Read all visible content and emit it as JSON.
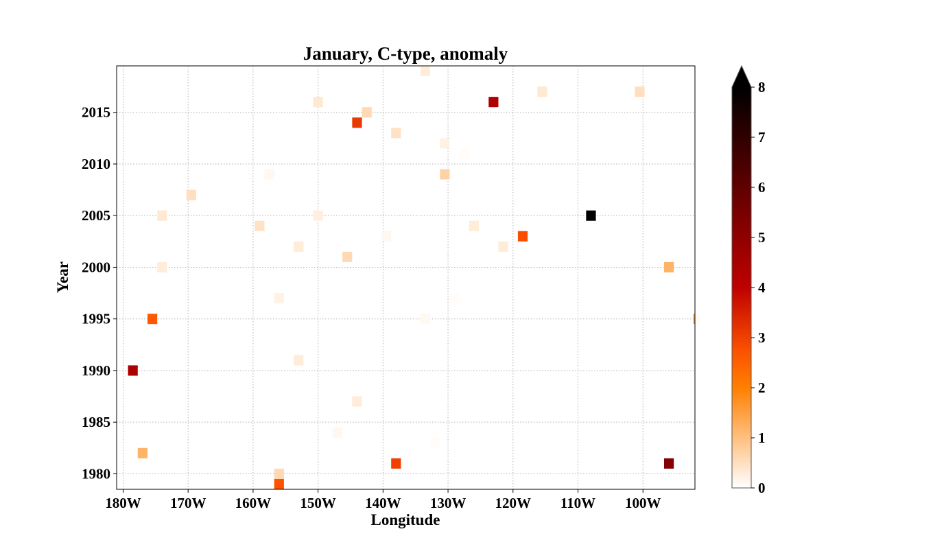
{
  "chart_data": {
    "type": "heatmap",
    "title": "January, C-type, anomaly",
    "xlabel": "Longitude",
    "ylabel": "Year",
    "xlim": [
      -181,
      -92
    ],
    "ylim": [
      1978.5,
      2019.5
    ],
    "x_ticks": [
      {
        "value": -180,
        "label": "180W"
      },
      {
        "value": -170,
        "label": "170W"
      },
      {
        "value": -160,
        "label": "160W"
      },
      {
        "value": -150,
        "label": "150W"
      },
      {
        "value": -140,
        "label": "140W"
      },
      {
        "value": -130,
        "label": "130W"
      },
      {
        "value": -120,
        "label": "120W"
      },
      {
        "value": -110,
        "label": "110W"
      },
      {
        "value": -100,
        "label": "100W"
      }
    ],
    "y_ticks": [
      {
        "value": 1980,
        "label": "1980"
      },
      {
        "value": 1985,
        "label": "1985"
      },
      {
        "value": 1990,
        "label": "1990"
      },
      {
        "value": 1995,
        "label": "1995"
      },
      {
        "value": 2000,
        "label": "2000"
      },
      {
        "value": 2005,
        "label": "2005"
      },
      {
        "value": 2010,
        "label": "2010"
      },
      {
        "value": 2015,
        "label": "2015"
      }
    ],
    "grid": true,
    "colormap": "gist_heat_r",
    "colorbar": {
      "min": 0,
      "max": 8,
      "extend": "max",
      "ticks": [
        {
          "value": 0,
          "label": "0"
        },
        {
          "value": 1,
          "label": "1"
        },
        {
          "value": 2,
          "label": "2"
        },
        {
          "value": 3,
          "label": "3"
        },
        {
          "value": 4,
          "label": "4"
        },
        {
          "value": 5,
          "label": "5"
        },
        {
          "value": 6,
          "label": "6"
        },
        {
          "value": 7,
          "label": "7"
        },
        {
          "value": 8,
          "label": "8"
        }
      ]
    },
    "cell_size": {
      "lon": 1.5,
      "year": 1
    },
    "points": [
      {
        "lon": -133.5,
        "year": 2019,
        "value": 0.3
      },
      {
        "lon": -115.5,
        "year": 2017,
        "value": 0.35
      },
      {
        "lon": -100.5,
        "year": 2017,
        "value": 0.5
      },
      {
        "lon": -123,
        "year": 2016,
        "value": 4.3
      },
      {
        "lon": -150,
        "year": 2016,
        "value": 0.35
      },
      {
        "lon": -142.5,
        "year": 2015,
        "value": 0.6
      },
      {
        "lon": -144,
        "year": 2014,
        "value": 3.1
      },
      {
        "lon": -138,
        "year": 2013,
        "value": 0.45
      },
      {
        "lon": -130.5,
        "year": 2012,
        "value": 0.2
      },
      {
        "lon": -127.5,
        "year": 2011,
        "value": 0.05
      },
      {
        "lon": -130.5,
        "year": 2009,
        "value": 0.7
      },
      {
        "lon": -157.5,
        "year": 2009,
        "value": 0.12
      },
      {
        "lon": -169.5,
        "year": 2007,
        "value": 0.5
      },
      {
        "lon": -174,
        "year": 2005,
        "value": 0.35
      },
      {
        "lon": -150,
        "year": 2005,
        "value": 0.25
      },
      {
        "lon": -108,
        "year": 2005,
        "value": 8.0
      },
      {
        "lon": -159,
        "year": 2004,
        "value": 0.45
      },
      {
        "lon": -126,
        "year": 2004,
        "value": 0.3
      },
      {
        "lon": -118.5,
        "year": 2003,
        "value": 2.8
      },
      {
        "lon": -139.5,
        "year": 2003,
        "value": 0.12
      },
      {
        "lon": -153,
        "year": 2002,
        "value": 0.3
      },
      {
        "lon": -121.5,
        "year": 2002,
        "value": 0.3
      },
      {
        "lon": -145.5,
        "year": 2001,
        "value": 0.6
      },
      {
        "lon": -174,
        "year": 2000,
        "value": 0.3
      },
      {
        "lon": -96,
        "year": 2000,
        "value": 1.2
      },
      {
        "lon": -156,
        "year": 1997,
        "value": 0.2
      },
      {
        "lon": -129,
        "year": 1997,
        "value": 0.05
      },
      {
        "lon": -175.5,
        "year": 1995,
        "value": 2.6
      },
      {
        "lon": -133.5,
        "year": 1995,
        "value": 0.1
      },
      {
        "lon": -91.5,
        "year": 1995,
        "value": 1.5
      },
      {
        "lon": -153,
        "year": 1991,
        "value": 0.3
      },
      {
        "lon": -178.5,
        "year": 1990,
        "value": 4.4
      },
      {
        "lon": -144,
        "year": 1987,
        "value": 0.3
      },
      {
        "lon": -147,
        "year": 1984,
        "value": 0.12
      },
      {
        "lon": -132,
        "year": 1983,
        "value": 0.05
      },
      {
        "lon": -177,
        "year": 1982,
        "value": 1.2
      },
      {
        "lon": -138,
        "year": 1981,
        "value": 3.0
      },
      {
        "lon": -96,
        "year": 1981,
        "value": 5.2
      },
      {
        "lon": -156,
        "year": 1980,
        "value": 0.6
      },
      {
        "lon": -156,
        "year": 1979,
        "value": 2.7
      }
    ]
  }
}
